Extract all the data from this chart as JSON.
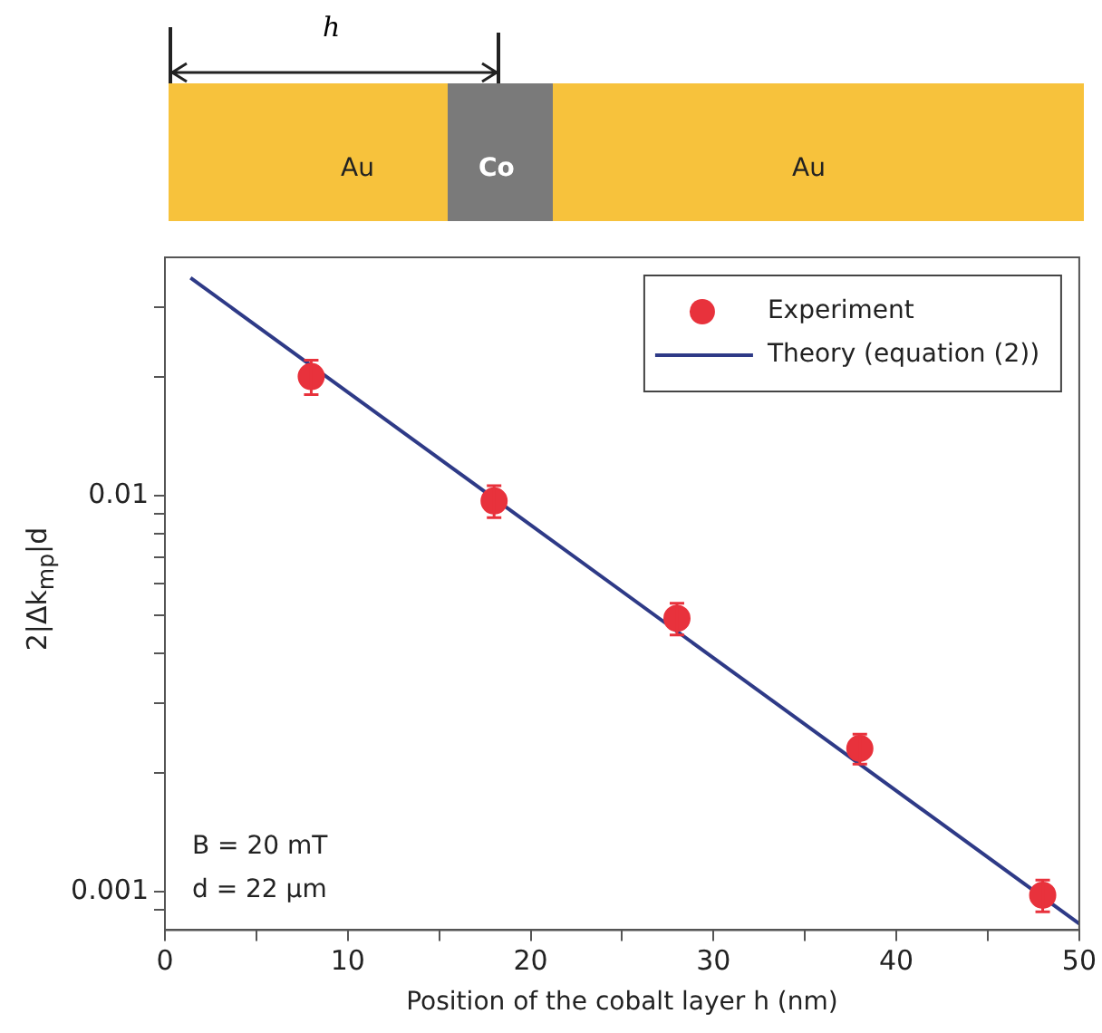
{
  "chart_data": {
    "type": "scatter",
    "xlabel": "Position of the cobalt layer h (nm)",
    "ylabel": "2|Δk$_{mp}$|d",
    "log": "y",
    "xlim": [
      0,
      50
    ],
    "ylim": [
      0.0008,
      0.04
    ],
    "xticks": [
      0,
      {
        "value": 5,
        "label": null
      },
      10,
      {
        "value": 15,
        "label": null
      },
      20,
      {
        "value": 25,
        "label": null
      },
      30,
      {
        "value": 35,
        "label": null
      },
      40,
      {
        "value": 45,
        "label": null
      },
      50
    ],
    "yticks": [
      {
        "value": 0.0009,
        "label": null
      },
      0.001,
      {
        "value": 0.002,
        "label": null
      },
      {
        "value": 0.003,
        "label": null
      },
      {
        "value": 0.004,
        "label": null
      },
      {
        "value": 0.005,
        "label": null
      },
      {
        "value": 0.006,
        "label": null
      },
      {
        "value": 0.007,
        "label": null
      },
      {
        "value": 0.008,
        "label": null
      },
      {
        "value": 0.009,
        "label": null
      },
      0.01,
      {
        "value": 0.02,
        "label": null
      },
      {
        "value": 0.03,
        "label": null
      }
    ],
    "grid": false,
    "legend": "top right",
    "marker": "circle",
    "series": [
      {
        "name": "Experiment",
        "type": "scatter",
        "color": "#e8323c",
        "x": [
          8,
          18,
          28,
          38,
          48
        ],
        "values": [
          0.02,
          0.0097,
          0.0049,
          0.0023,
          0.00098
        ],
        "errors": [
          0.002,
          0.0009,
          0.00045,
          0.0002,
          9e-05
        ]
      },
      {
        "name": "Theory (equation (2))",
        "type": "line",
        "color": "#2e3a87",
        "marker": "none",
        "line_style": "solid",
        "x": [
          1.4,
          50
        ],
        "values": [
          0.0355,
          0.00083
        ]
      }
    ],
    "annotations": [
      "h",
      "Au",
      "Co",
      "Au",
      "B = 20 mT",
      "d = 22 µm"
    ]
  }
}
